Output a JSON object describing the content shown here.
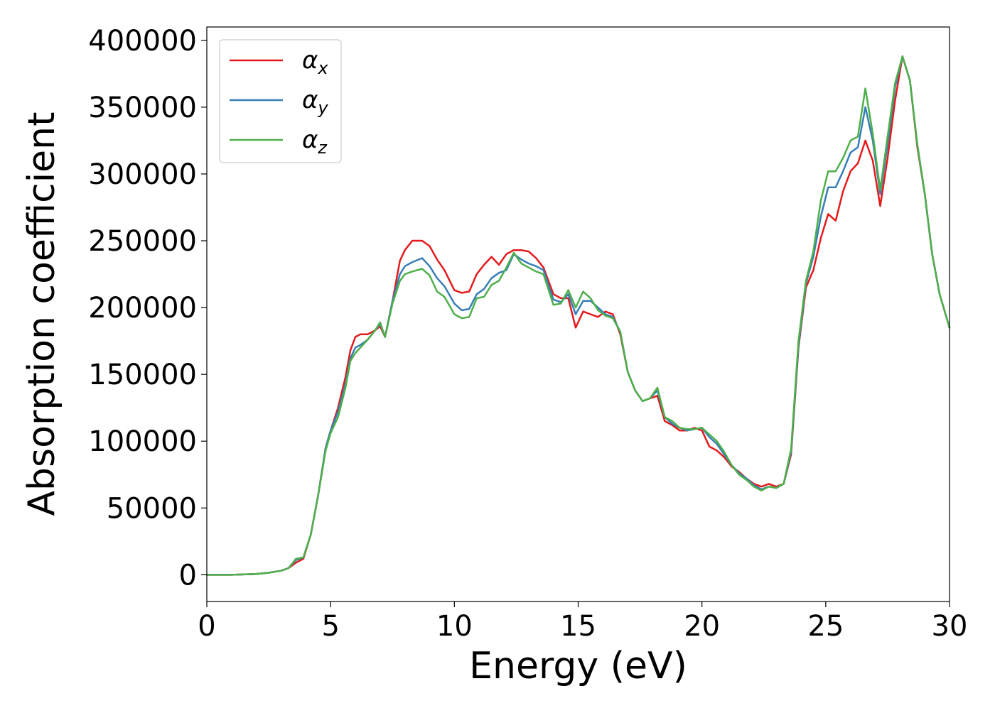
{
  "chart_data": {
    "type": "line",
    "title": "",
    "xlabel": "Energy (eV)",
    "ylabel": "Absorption coefficient",
    "xlim": [
      0,
      30
    ],
    "ylim": [
      -20000,
      410000
    ],
    "x_ticks": [
      0,
      5,
      10,
      15,
      20,
      25,
      30
    ],
    "y_ticks": [
      0,
      50000,
      100000,
      150000,
      200000,
      250000,
      300000,
      350000,
      400000
    ],
    "grid": false,
    "legend_position": "top-left",
    "series": [
      {
        "name": "αx",
        "label_base": "α",
        "label_sub": "x",
        "color": "#e41a1c",
        "x": [
          0,
          1,
          2,
          2.5,
          3,
          3.3,
          3.6,
          3.9,
          4.2,
          4.5,
          4.8,
          5.0,
          5.3,
          5.6,
          5.8,
          6.0,
          6.2,
          6.5,
          6.8,
          7.0,
          7.2,
          7.5,
          7.8,
          8.0,
          8.3,
          8.7,
          9.0,
          9.3,
          9.6,
          10.0,
          10.3,
          10.6,
          10.9,
          11.2,
          11.5,
          11.8,
          12.1,
          12.4,
          12.7,
          13.0,
          13.3,
          13.6,
          14.0,
          14.3,
          14.6,
          14.9,
          15.2,
          15.5,
          15.8,
          16.1,
          16.4,
          16.7,
          17.0,
          17.3,
          17.6,
          17.9,
          18.2,
          18.5,
          18.8,
          19.1,
          19.4,
          19.7,
          20.0,
          20.3,
          20.6,
          20.9,
          21.2,
          21.5,
          21.8,
          22.1,
          22.4,
          22.7,
          23.0,
          23.3,
          23.6,
          23.9,
          24.2,
          24.5,
          24.8,
          25.1,
          25.4,
          25.7,
          26.0,
          26.3,
          26.6,
          26.9,
          27.2,
          27.5,
          27.8,
          28.1,
          28.4,
          28.7,
          29.0,
          29.3,
          29.6,
          30.0
        ],
        "y": [
          0,
          0,
          600,
          1500,
          3000,
          5000,
          9000,
          12000,
          30000,
          60000,
          95000,
          108000,
          125000,
          148000,
          168000,
          178000,
          180000,
          180000,
          183000,
          186000,
          178000,
          205000,
          235000,
          243000,
          250000,
          250000,
          246000,
          236000,
          228000,
          213000,
          211000,
          212000,
          225000,
          232000,
          238000,
          232000,
          240000,
          243000,
          243000,
          242000,
          237000,
          230000,
          210000,
          207000,
          207000,
          185000,
          197000,
          195000,
          193000,
          197000,
          195000,
          180000,
          152000,
          138000,
          130000,
          132000,
          134000,
          115000,
          112000,
          108000,
          108000,
          110000,
          108000,
          96000,
          93000,
          88000,
          81000,
          77000,
          72000,
          68000,
          66000,
          68000,
          66000,
          68000,
          90000,
          170000,
          215000,
          228000,
          252000,
          270000,
          265000,
          287000,
          302000,
          308000,
          325000,
          310000,
          276000,
          312000,
          355000,
          388000,
          370000,
          320000,
          285000,
          240000,
          210000,
          185000
        ]
      },
      {
        "name": "αy",
        "label_base": "α",
        "label_sub": "y",
        "color": "#377eb8",
        "x": [
          0,
          1,
          2,
          2.5,
          3,
          3.3,
          3.6,
          3.9,
          4.2,
          4.5,
          4.8,
          5.0,
          5.3,
          5.6,
          5.8,
          6.0,
          6.2,
          6.5,
          6.8,
          7.0,
          7.2,
          7.5,
          7.8,
          8.0,
          8.3,
          8.7,
          9.0,
          9.3,
          9.6,
          10.0,
          10.3,
          10.6,
          10.9,
          11.2,
          11.5,
          11.8,
          12.1,
          12.4,
          12.7,
          13.0,
          13.3,
          13.6,
          14.0,
          14.3,
          14.6,
          14.9,
          15.2,
          15.5,
          15.8,
          16.1,
          16.4,
          16.7,
          17.0,
          17.3,
          17.6,
          17.9,
          18.2,
          18.5,
          18.8,
          19.1,
          19.4,
          19.7,
          20.0,
          20.3,
          20.6,
          20.9,
          21.2,
          21.5,
          21.8,
          22.1,
          22.4,
          22.7,
          23.0,
          23.3,
          23.6,
          23.9,
          24.2,
          24.5,
          24.8,
          25.1,
          25.4,
          25.7,
          26.0,
          26.3,
          26.6,
          26.9,
          27.2,
          27.5,
          27.8,
          28.1,
          28.4,
          28.7,
          29.0,
          29.3,
          29.6,
          30.0
        ],
        "y": [
          0,
          0,
          600,
          1500,
          3000,
          5000,
          11000,
          13000,
          30000,
          60000,
          95000,
          108000,
          122000,
          143000,
          162000,
          170000,
          172000,
          176000,
          183000,
          188000,
          178000,
          205000,
          225000,
          231000,
          234000,
          237000,
          231000,
          222000,
          216000,
          203000,
          198000,
          199000,
          210000,
          214000,
          222000,
          226000,
          228000,
          240000,
          236000,
          233000,
          231000,
          228000,
          206000,
          204000,
          210000,
          195000,
          205000,
          205000,
          200000,
          195000,
          193000,
          182000,
          152000,
          138000,
          130000,
          132000,
          138000,
          118000,
          113000,
          110000,
          108000,
          109000,
          110000,
          103000,
          98000,
          90000,
          82000,
          76000,
          72000,
          67000,
          64000,
          66000,
          65000,
          68000,
          92000,
          172000,
          218000,
          238000,
          268000,
          290000,
          290000,
          302000,
          316000,
          320000,
          350000,
          325000,
          285000,
          322000,
          365000,
          388000,
          370000,
          322000,
          285000,
          240000,
          210000,
          185000
        ]
      },
      {
        "name": "αz",
        "label_base": "α",
        "label_sub": "z",
        "color": "#4daf4a",
        "x": [
          0,
          1,
          2,
          2.5,
          3,
          3.3,
          3.6,
          3.9,
          4.2,
          4.5,
          4.8,
          5.0,
          5.3,
          5.6,
          5.8,
          6.0,
          6.2,
          6.5,
          6.8,
          7.0,
          7.2,
          7.5,
          7.8,
          8.0,
          8.3,
          8.7,
          9.0,
          9.3,
          9.6,
          10.0,
          10.3,
          10.6,
          10.9,
          11.2,
          11.5,
          11.8,
          12.1,
          12.4,
          12.7,
          13.0,
          13.3,
          13.6,
          14.0,
          14.3,
          14.6,
          14.9,
          15.2,
          15.5,
          15.8,
          16.1,
          16.4,
          16.7,
          17.0,
          17.3,
          17.6,
          17.9,
          18.2,
          18.5,
          18.8,
          19.1,
          19.4,
          19.7,
          20.0,
          20.3,
          20.6,
          20.9,
          21.2,
          21.5,
          21.8,
          22.1,
          22.4,
          22.7,
          23.0,
          23.3,
          23.6,
          23.9,
          24.2,
          24.5,
          24.8,
          25.1,
          25.4,
          25.7,
          26.0,
          26.3,
          26.6,
          26.9,
          27.2,
          27.5,
          27.8,
          28.1,
          28.4,
          28.7,
          29.0,
          29.3,
          29.6,
          30.0
        ],
        "y": [
          0,
          0,
          600,
          1500,
          3000,
          5000,
          12000,
          13000,
          30000,
          60000,
          93000,
          106000,
          118000,
          140000,
          160000,
          166000,
          170000,
          176000,
          183000,
          189000,
          178000,
          203000,
          220000,
          225000,
          227000,
          229000,
          224000,
          212000,
          208000,
          195000,
          192000,
          193000,
          207000,
          208000,
          217000,
          220000,
          230000,
          241000,
          233000,
          230000,
          227000,
          225000,
          202000,
          203000,
          213000,
          200000,
          212000,
          207000,
          198000,
          194000,
          192000,
          182000,
          152000,
          138000,
          130000,
          132000,
          140000,
          118000,
          115000,
          110000,
          109000,
          109000,
          110000,
          105000,
          100000,
          92000,
          82000,
          75000,
          71000,
          66000,
          63000,
          66000,
          65000,
          68000,
          94000,
          175000,
          220000,
          242000,
          280000,
          302000,
          302000,
          312000,
          325000,
          328000,
          364000,
          330000,
          288000,
          328000,
          368000,
          388000,
          370000,
          322000,
          285000,
          240000,
          210000,
          185000
        ]
      }
    ]
  }
}
